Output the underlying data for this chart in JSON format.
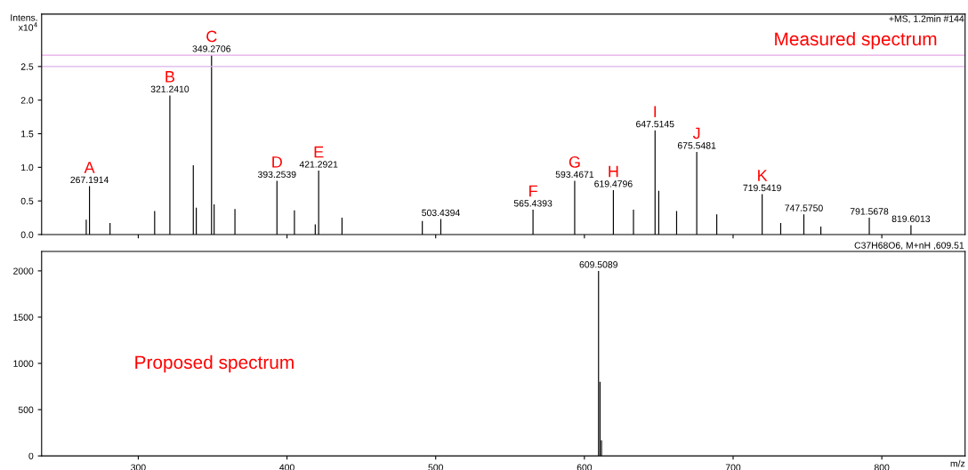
{
  "chart_data": [
    {
      "type": "bar",
      "ylabel": "Intens.\nx10$^{4}$",
      "tick_labels": "y",
      "xlim": [
        235,
        856
      ],
      "xticks": [
        {
          "value": 300,
          "label": null
        },
        {
          "value": 400,
          "label": null
        },
        {
          "value": 500,
          "label": null
        },
        {
          "value": 600,
          "label": null
        },
        {
          "value": 700,
          "label": null
        },
        {
          "value": 800,
          "label": null
        }
      ],
      "ylim": [
        0,
        3.28
      ],
      "yticks": [
        {
          "value": 0,
          "label": "0.0"
        },
        {
          "value": 0.5,
          "label": "0.5"
        },
        {
          "value": 1,
          "label": "1.0"
        },
        {
          "value": 1.5,
          "label": "1.5"
        },
        {
          "value": 2,
          "label": "2.0"
        },
        {
          "value": 2.5,
          "label": "2.5"
        }
      ],
      "x": [
        265,
        267.1914,
        281,
        311,
        321.241,
        337,
        339,
        349.2706,
        351,
        365,
        393.2539,
        405,
        419,
        421.2921,
        437,
        491,
        503.4394,
        565.4393,
        593.4671,
        619.4796,
        633,
        647.5145,
        650,
        662,
        675.5481,
        689,
        719.5419,
        732,
        747.575,
        759,
        791.5678,
        819.6013
      ],
      "series": [
        {
          "color": "#000000",
          "values": [
            0.22,
            0.72,
            0.17,
            0.35,
            2.07,
            1.03,
            0.4,
            2.67,
            0.45,
            0.38,
            0.8,
            0.36,
            0.15,
            0.95,
            0.25,
            0.2,
            0.23,
            0.37,
            0.8,
            0.66,
            0.37,
            1.55,
            0.65,
            0.35,
            1.23,
            0.3,
            0.6,
            0.17,
            0.3,
            0.12,
            0.25,
            0.14
          ]
        }
      ],
      "ref_lines": [
        {
          "axis": "y",
          "value": 2.67,
          "color": "#e8a6e6"
        },
        {
          "axis": "y",
          "value": 2.5,
          "color": "#d9b3ea"
        }
      ],
      "annotations": [
        "+MS, 1.2min #144",
        "Measured spectrum",
        {
          "text": "267.1914",
          "x": 267.1914,
          "y": 0.72
        },
        {
          "text": "321.2410",
          "x": 321.241,
          "y": 2.07
        },
        {
          "text": "349.2706",
          "x": 349.2706,
          "y": 2.67
        },
        {
          "text": "393.2539",
          "x": 393.2539,
          "y": 0.8
        },
        {
          "text": "421.2921",
          "x": 421.2921,
          "y": 0.95
        },
        {
          "text": "503.4394",
          "x": 503.4394,
          "y": 0.23
        },
        {
          "text": "565.4393",
          "x": 565.4393,
          "y": 0.37
        },
        {
          "text": "593.4671",
          "x": 593.4671,
          "y": 0.8
        },
        {
          "text": "619.4796",
          "x": 619.4796,
          "y": 0.66
        },
        {
          "text": "647.5145",
          "x": 647.5145,
          "y": 1.55
        },
        {
          "text": "675.5481",
          "x": 675.5481,
          "y": 1.23
        },
        {
          "text": "719.5419",
          "x": 719.5419,
          "y": 0.6
        },
        {
          "text": "747.5750",
          "x": 747.575,
          "y": 0.3
        },
        {
          "text": "791.5678",
          "x": 791.5678,
          "y": 0.25
        },
        {
          "text": "819.6013",
          "x": 819.6013,
          "y": 0.14
        },
        {
          "text": "A",
          "x": 267.1914,
          "y": 0.72
        },
        {
          "text": "B",
          "x": 321.241,
          "y": 2.07
        },
        {
          "text": "C",
          "x": 349.2706,
          "y": 2.67
        },
        {
          "text": "D",
          "x": 393.2539,
          "y": 0.8
        },
        {
          "text": "E",
          "x": 421.2921,
          "y": 0.95
        },
        {
          "text": "F",
          "x": 565.4393,
          "y": 0.37
        },
        {
          "text": "G",
          "x": 593.4671,
          "y": 0.8
        },
        {
          "text": "H",
          "x": 619.4796,
          "y": 0.66
        },
        {
          "text": "I",
          "x": 647.5145,
          "y": 1.55
        },
        {
          "text": "J",
          "x": 675.5481,
          "y": 1.23
        },
        {
          "text": "K",
          "x": 719.5419,
          "y": 0.6
        }
      ]
    },
    {
      "type": "bar",
      "xlabel": "m/z",
      "xlim": [
        235,
        856
      ],
      "xticks": [
        300,
        400,
        500,
        600,
        700,
        800
      ],
      "ylim": [
        0,
        2210
      ],
      "yticks": [
        0,
        500,
        1000,
        1500,
        2000
      ],
      "x": [
        609.5089,
        610.5,
        611.5
      ],
      "series": [
        {
          "color": "#000000",
          "values": [
            2000,
            800,
            170
          ]
        }
      ],
      "annotations": [
        "C37H68O6, M+nH ,609.51",
        "Proposed spectrum",
        {
          "text": "609.5089",
          "x": 609.5089,
          "y": 2000
        }
      ]
    }
  ]
}
